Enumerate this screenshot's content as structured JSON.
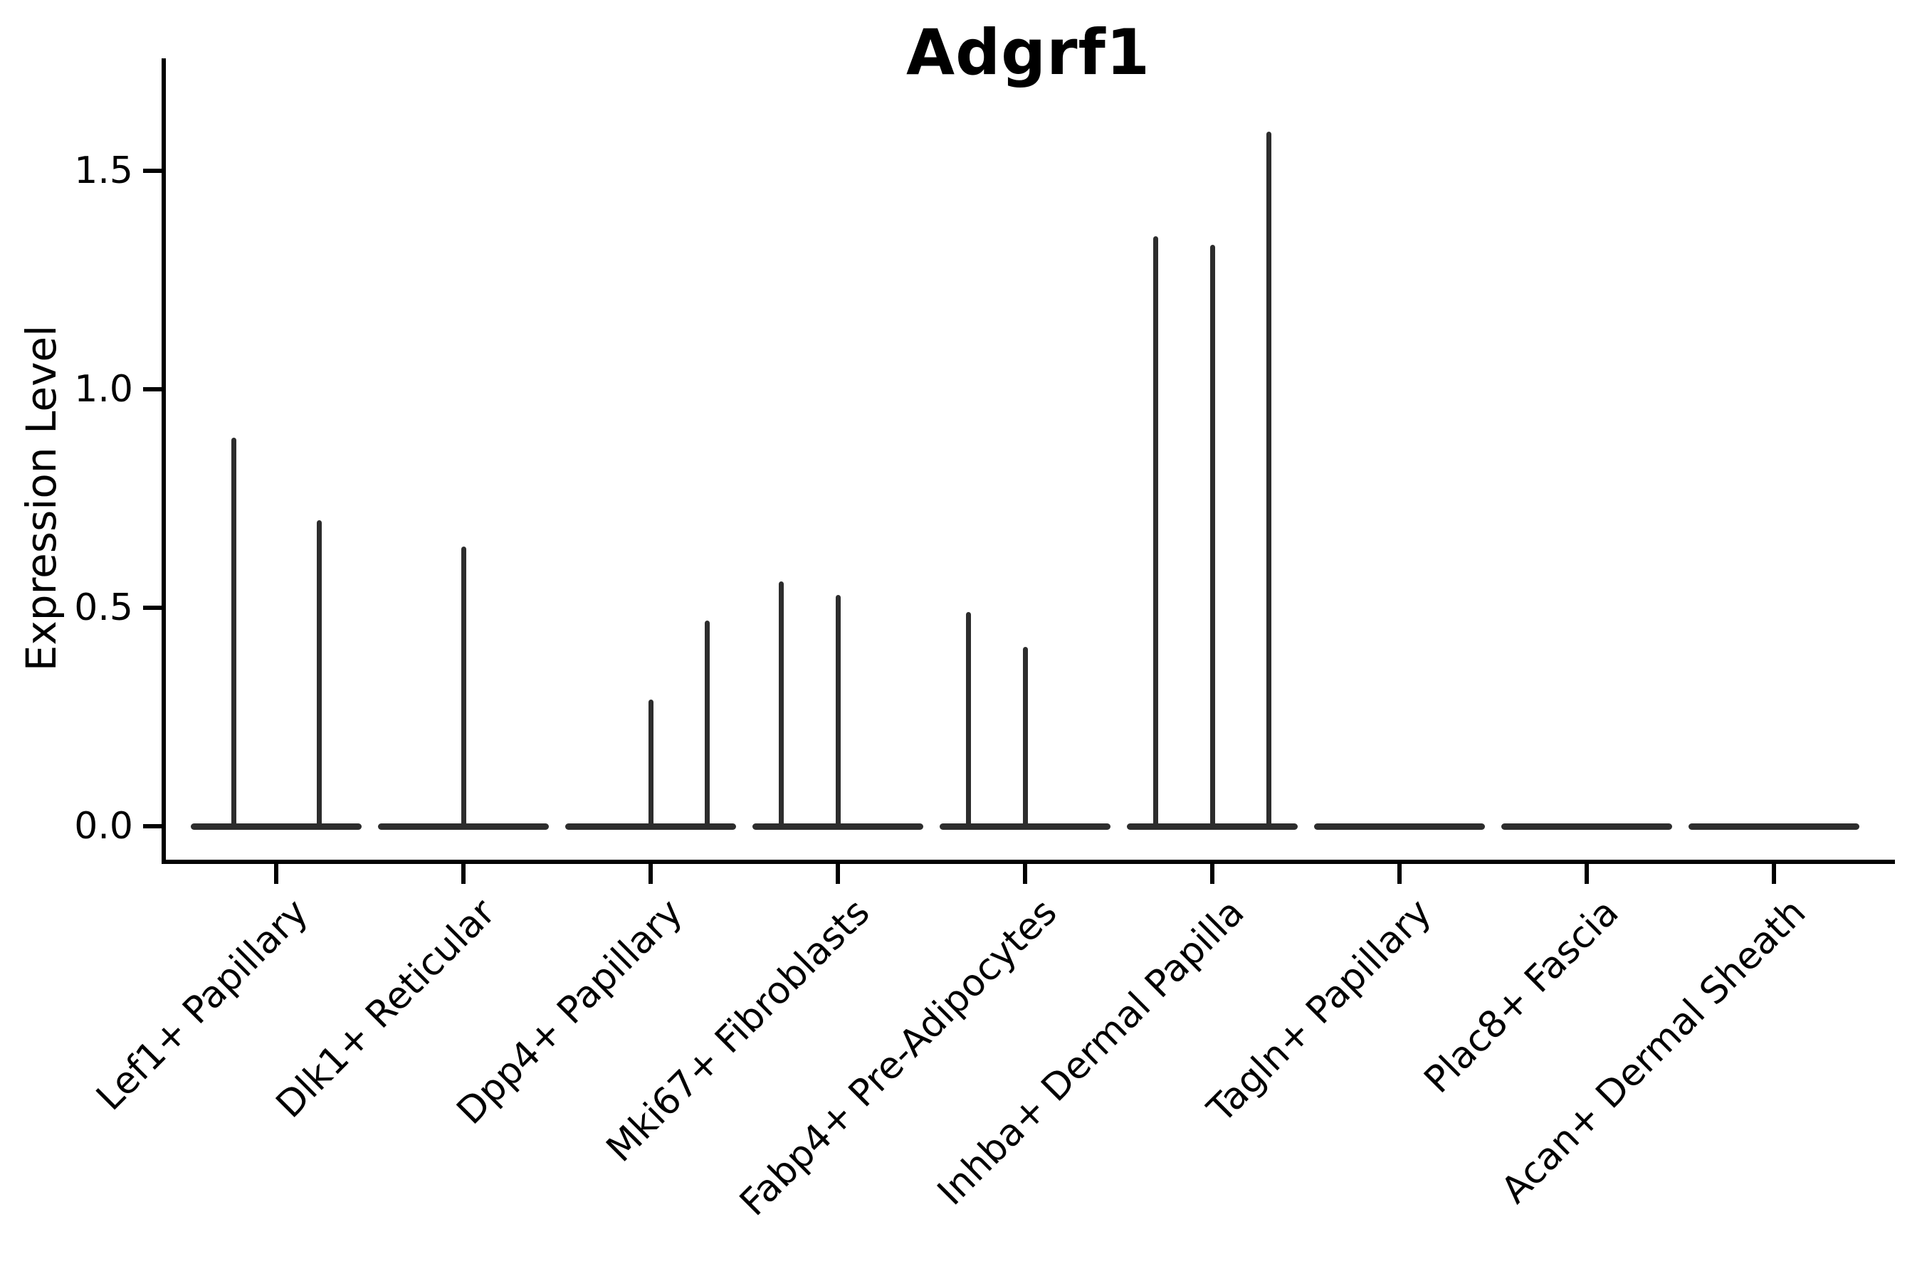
{
  "title": "Adgrf1",
  "axes": {
    "y_label": "Expression Level",
    "y_tick_labels": [
      "0.0",
      "0.5",
      "1.0",
      "1.5"
    ]
  },
  "chart_data": {
    "type": "violin",
    "title": "Adgrf1",
    "xlabel": "",
    "ylabel": "Expression Level",
    "ylim": [
      -0.1,
      1.68
    ],
    "y_ticks": [
      0.0,
      0.5,
      1.0,
      1.5
    ],
    "grid": false,
    "legend": "none",
    "stroke_color": "#2d2d2d",
    "axis_color": "#000000",
    "background_color": "#ffffff",
    "description": "Collapsed violins: each category shows a flat density base at expression 0 with thin spikes rising to the maximum expression of each sub-violin; spike pos is the fraction across the category slot (grouped/dodged sub-violins).",
    "baseline_value": 0.0,
    "categories": [
      "Lef1+ Papillary",
      "Dlk1+ Reticular",
      "Dpp4+ Papillary",
      "Mki67+ Fibroblasts",
      "Fabp4+ Pre-Adipocytes",
      "Inhba+ Dermal Papilla",
      "Tagln+ Papillary",
      "Plac8+ Fascia",
      "Acan+ Dermal Sheath"
    ],
    "violins": [
      {
        "category": "Lef1+ Papillary",
        "spikes": [
          {
            "pos": 0.25,
            "max": 0.89
          },
          {
            "pos": 0.75,
            "max": 0.7
          }
        ]
      },
      {
        "category": "Dlk1+ Reticular",
        "spikes": [
          {
            "pos": 0.5,
            "max": 0.64
          }
        ]
      },
      {
        "category": "Dpp4+ Papillary",
        "spikes": [
          {
            "pos": 0.5,
            "max": 0.29
          },
          {
            "pos": 0.833,
            "max": 0.47
          }
        ]
      },
      {
        "category": "Mki67+ Fibroblasts",
        "spikes": [
          {
            "pos": 0.167,
            "max": 0.56
          },
          {
            "pos": 0.5,
            "max": 0.53
          }
        ]
      },
      {
        "category": "Fabp4+ Pre-Adipocytes",
        "spikes": [
          {
            "pos": 0.167,
            "max": 0.49
          },
          {
            "pos": 0.5,
            "max": 0.41
          }
        ]
      },
      {
        "category": "Inhba+ Dermal Papilla",
        "spikes": [
          {
            "pos": 0.167,
            "max": 1.35
          },
          {
            "pos": 0.5,
            "max": 1.33
          },
          {
            "pos": 0.833,
            "max": 1.59
          }
        ]
      },
      {
        "category": "Tagln+ Papillary",
        "spikes": []
      },
      {
        "category": "Plac8+ Fascia",
        "spikes": []
      },
      {
        "category": "Acan+ Dermal Sheath",
        "spikes": []
      }
    ]
  }
}
